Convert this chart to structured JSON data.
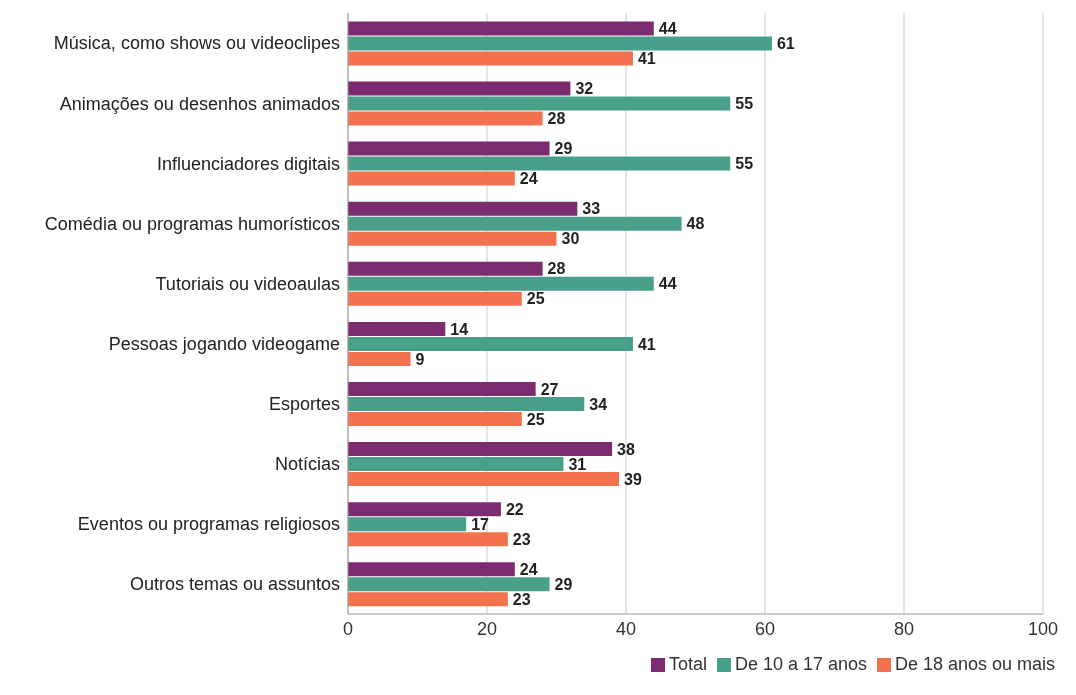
{
  "chart_data": {
    "type": "bar",
    "orientation": "horizontal",
    "categories": [
      "Música, como shows ou videoclipes",
      "Animações ou desenhos animados",
      "Influenciadores digitais",
      "Comédia ou programas humorísticos",
      "Tutoriais ou videoaulas",
      "Pessoas jogando videogame",
      "Esportes",
      "Notícias",
      "Eventos ou programas religiosos",
      "Outros temas ou assuntos"
    ],
    "series": [
      {
        "name": "Total",
        "color": "#7d2b70",
        "values": [
          44,
          32,
          29,
          33,
          28,
          14,
          27,
          38,
          22,
          24
        ]
      },
      {
        "name": "De 10 a 17 anos",
        "color": "#4a9f8b",
        "values": [
          61,
          55,
          55,
          48,
          44,
          41,
          34,
          31,
          17,
          29
        ]
      },
      {
        "name": "De 18 anos ou mais",
        "color": "#f2714f",
        "values": [
          41,
          28,
          24,
          30,
          25,
          9,
          25,
          39,
          23,
          23
        ]
      }
    ],
    "xlim": [
      0,
      100
    ],
    "xticks": [
      0,
      20,
      40,
      60,
      80,
      100
    ],
    "grid": "x",
    "legend": "bottom",
    "data_labels": true
  }
}
